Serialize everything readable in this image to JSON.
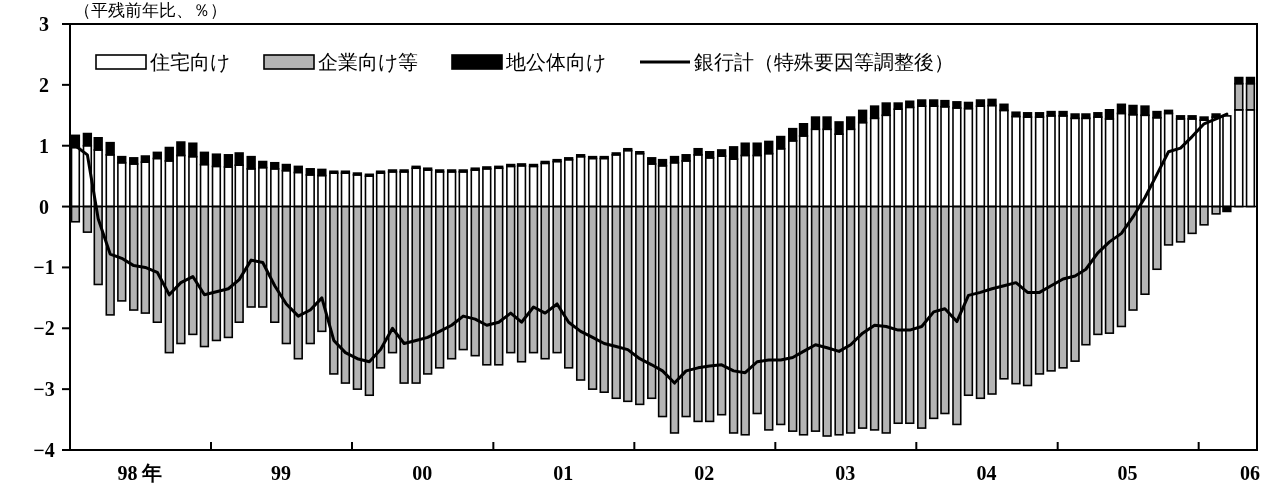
{
  "chart_data": {
    "type": "bar",
    "stacked": true,
    "ylabel": "（平残前年比、％）",
    "legend": "top left",
    "x": [
      "1998-01-15",
      "1998-02-15",
      "1998-03-15",
      "1998-04-15",
      "1998-05-15",
      "1998-06-15",
      "1998-07-15",
      "1998-08-15",
      "1998-09-15",
      "1998-10-15",
      "1998-11-15",
      "1998-12-15",
      "1999-01-15",
      "1999-02-15",
      "1999-03-15",
      "1999-04-15",
      "1999-05-15",
      "1999-06-15",
      "1999-07-15",
      "1999-08-15",
      "1999-09-15",
      "1999-10-15",
      "1999-11-15",
      "1999-12-15",
      "2000-01-15",
      "2000-02-15",
      "2000-03-15",
      "2000-04-15",
      "2000-05-15",
      "2000-06-15",
      "2000-07-15",
      "2000-08-15",
      "2000-09-15",
      "2000-10-15",
      "2000-11-15",
      "2000-12-15",
      "2001-01-15",
      "2001-02-15",
      "2001-03-15",
      "2001-04-15",
      "2001-05-15",
      "2001-06-15",
      "2001-07-15",
      "2001-08-15",
      "2001-09-15",
      "2001-10-15",
      "2001-11-15",
      "2001-12-15",
      "2002-01-15",
      "2002-02-15",
      "2002-03-15",
      "2002-04-15",
      "2002-05-15",
      "2002-06-15",
      "2002-07-15",
      "2002-08-15",
      "2002-09-15",
      "2002-10-15",
      "2002-11-15",
      "2002-12-15",
      "2003-01-15",
      "2003-02-15",
      "2003-03-15",
      "2003-04-15",
      "2003-05-15",
      "2003-06-15",
      "2003-07-15",
      "2003-08-15",
      "2003-09-15",
      "2003-10-15",
      "2003-11-15",
      "2003-12-15",
      "2004-01-15",
      "2004-02-15",
      "2004-03-15",
      "2004-04-15",
      "2004-05-15",
      "2004-06-15",
      "2004-07-15",
      "2004-08-15",
      "2004-09-15",
      "2004-10-15",
      "2004-11-15",
      "2004-12-15",
      "2005-01-15",
      "2005-02-15",
      "2005-03-15",
      "2005-04-15",
      "2005-05-15",
      "2005-06-15",
      "2005-07-15",
      "2005-08-15",
      "2005-09-15",
      "2005-10-15",
      "2005-11-15",
      "2005-12-15",
      "2006-01-15",
      "2006-02-15",
      "2006-03-15",
      "2006-04-15",
      "2006-05-15"
    ],
    "xlim": [
      "1998-01",
      "2006-06"
    ],
    "xticks": [
      {
        "value": "1998-07",
        "label": "98 年"
      },
      {
        "value": "1999-07",
        "label": "99"
      },
      {
        "value": "2000-07",
        "label": "00"
      },
      {
        "value": "2001-07",
        "label": "01"
      },
      {
        "value": "2002-07",
        "label": "02"
      },
      {
        "value": "2003-07",
        "label": "03"
      },
      {
        "value": "2004-07",
        "label": "04"
      },
      {
        "value": "2005-07",
        "label": "05"
      },
      {
        "value": "2006-06",
        "label": "06"
      },
      {
        "value": "1999-01",
        "label": null
      },
      {
        "value": "2000-01",
        "label": null
      },
      {
        "value": "2001-01",
        "label": null
      },
      {
        "value": "2002-01",
        "label": null
      },
      {
        "value": "2003-01",
        "label": null
      },
      {
        "value": "2004-01",
        "label": null
      },
      {
        "value": "2005-01",
        "label": null
      },
      {
        "value": "2006-01",
        "label": null
      }
    ],
    "ylim": [
      -4,
      3
    ],
    "yticks": [
      -4,
      -3,
      -2,
      -1,
      0,
      1,
      2,
      3
    ],
    "series": [
      {
        "name": "住宅向け",
        "color": "#ffffff",
        "values": [
          0.97,
          1.0,
          0.93,
          0.85,
          0.72,
          0.7,
          0.73,
          0.79,
          0.75,
          0.84,
          0.82,
          0.69,
          0.66,
          0.65,
          0.68,
          0.62,
          0.64,
          0.62,
          0.59,
          0.56,
          0.52,
          0.51,
          0.55,
          0.55,
          0.52,
          0.5,
          0.55,
          0.57,
          0.57,
          0.63,
          0.6,
          0.57,
          0.57,
          0.57,
          0.6,
          0.62,
          0.63,
          0.66,
          0.67,
          0.66,
          0.71,
          0.74,
          0.77,
          0.82,
          0.79,
          0.79,
          0.85,
          0.92,
          0.87,
          0.7,
          0.67,
          0.72,
          0.75,
          0.85,
          0.8,
          0.83,
          0.78,
          0.84,
          0.84,
          0.87,
          0.95,
          1.08,
          1.16,
          1.27,
          1.27,
          1.19,
          1.27,
          1.38,
          1.45,
          1.5,
          1.6,
          1.63,
          1.65,
          1.65,
          1.64,
          1.62,
          1.61,
          1.65,
          1.66,
          1.58,
          1.48,
          1.47,
          1.47,
          1.49,
          1.49,
          1.45,
          1.45,
          1.47,
          1.44,
          1.53,
          1.51,
          1.5,
          1.46,
          1.53,
          1.44,
          1.44,
          1.42,
          1.47,
          1.49,
          1.59,
          1.59
        ]
      },
      {
        "name": "企業向け等",
        "color": "#b4b4b4",
        "values": [
          -0.25,
          -0.42,
          -1.28,
          -1.78,
          -1.55,
          -1.7,
          -1.75,
          -1.9,
          -2.4,
          -2.25,
          -2.1,
          -2.3,
          -2.2,
          -2.15,
          -1.9,
          -1.65,
          -1.65,
          -1.9,
          -2.25,
          -2.5,
          -2.25,
          -2.05,
          -2.75,
          -2.9,
          -3.0,
          -3.1,
          -2.65,
          -2.4,
          -2.9,
          -2.9,
          -2.75,
          -2.65,
          -2.5,
          -2.35,
          -2.45,
          -2.6,
          -2.6,
          -2.4,
          -2.55,
          -2.4,
          -2.5,
          -2.4,
          -2.65,
          -2.85,
          -3.0,
          -3.05,
          -3.15,
          -3.2,
          -3.25,
          -3.15,
          -3.45,
          -3.72,
          -3.45,
          -3.53,
          -3.53,
          -3.42,
          -3.72,
          -3.75,
          -3.4,
          -3.67,
          -3.58,
          -3.69,
          -3.75,
          -3.69,
          -3.77,
          -3.75,
          -3.72,
          -3.64,
          -3.67,
          -3.72,
          -3.56,
          -3.56,
          -3.64,
          -3.48,
          -3.4,
          -3.58,
          -3.1,
          -3.15,
          -3.08,
          -2.83,
          -2.91,
          -2.94,
          -2.75,
          -2.7,
          -2.65,
          -2.54,
          -2.27,
          -2.1,
          -2.08,
          -1.97,
          -1.7,
          -1.44,
          -1.03,
          -0.63,
          -0.58,
          -0.44,
          -0.3,
          -0.12,
          null,
          0.43,
          0.43
        ]
      },
      {
        "name": "地公体向け",
        "color": "#000000",
        "values": [
          0.2,
          0.2,
          0.2,
          0.2,
          0.1,
          0.1,
          0.1,
          0.1,
          0.22,
          0.22,
          0.22,
          0.2,
          0.2,
          0.2,
          0.2,
          0.2,
          0.1,
          0.1,
          0.1,
          0.1,
          0.1,
          0.1,
          0.03,
          0.03,
          0.03,
          0.03,
          0.03,
          0.03,
          0.03,
          0.03,
          0.03,
          0.03,
          0.03,
          0.03,
          0.03,
          0.03,
          0.03,
          0.03,
          0.03,
          0.03,
          0.03,
          0.03,
          0.03,
          0.03,
          0.03,
          0.03,
          0.03,
          0.03,
          0.03,
          0.1,
          0.1,
          0.1,
          0.1,
          0.1,
          0.1,
          0.1,
          0.2,
          0.2,
          0.2,
          0.2,
          0.2,
          0.2,
          0.2,
          0.2,
          0.2,
          0.2,
          0.2,
          0.2,
          0.2,
          0.2,
          0.1,
          0.1,
          0.1,
          0.1,
          0.1,
          0.1,
          0.1,
          0.1,
          0.1,
          0.1,
          0.07,
          0.07,
          0.07,
          0.07,
          0.07,
          0.07,
          0.07,
          0.07,
          0.15,
          0.15,
          0.15,
          0.15,
          0.1,
          0.05,
          0.05,
          0.05,
          0.05,
          0.05,
          -0.08,
          0.1,
          0.1
        ]
      },
      {
        "name": "銀行計（特殊要因等調整後）",
        "type": "line",
        "color": "#000000",
        "values": [
          1.0,
          0.85,
          -0.2,
          -0.78,
          -0.85,
          -0.97,
          -1.0,
          -1.08,
          -1.45,
          -1.25,
          -1.15,
          -1.45,
          -1.4,
          -1.35,
          -1.2,
          -0.88,
          -0.92,
          -1.3,
          -1.6,
          -1.8,
          -1.7,
          -1.5,
          -2.2,
          -2.4,
          -2.5,
          -2.55,
          -2.35,
          -2.0,
          -2.25,
          -2.2,
          -2.15,
          -2.05,
          -1.95,
          -1.8,
          -1.85,
          -1.95,
          -1.9,
          -1.75,
          -1.9,
          -1.65,
          -1.75,
          -1.6,
          -1.9,
          -2.05,
          -2.15,
          -2.25,
          -2.3,
          -2.35,
          -2.5,
          -2.6,
          -2.7,
          -2.9,
          -2.7,
          -2.65,
          -2.62,
          -2.6,
          -2.7,
          -2.73,
          -2.55,
          -2.52,
          -2.52,
          -2.48,
          -2.38,
          -2.27,
          -2.32,
          -2.38,
          -2.27,
          -2.08,
          -1.95,
          -1.97,
          -2.03,
          -2.03,
          -1.97,
          -1.73,
          -1.68,
          -1.89,
          -1.46,
          -1.41,
          -1.35,
          -1.3,
          -1.25,
          -1.41,
          -1.41,
          -1.3,
          -1.19,
          -1.14,
          -1.03,
          -0.76,
          -0.58,
          -0.44,
          -0.17,
          0.15,
          0.53,
          0.9,
          0.96,
          1.15,
          1.36,
          1.44,
          1.52,
          null,
          null
        ]
      }
    ]
  }
}
